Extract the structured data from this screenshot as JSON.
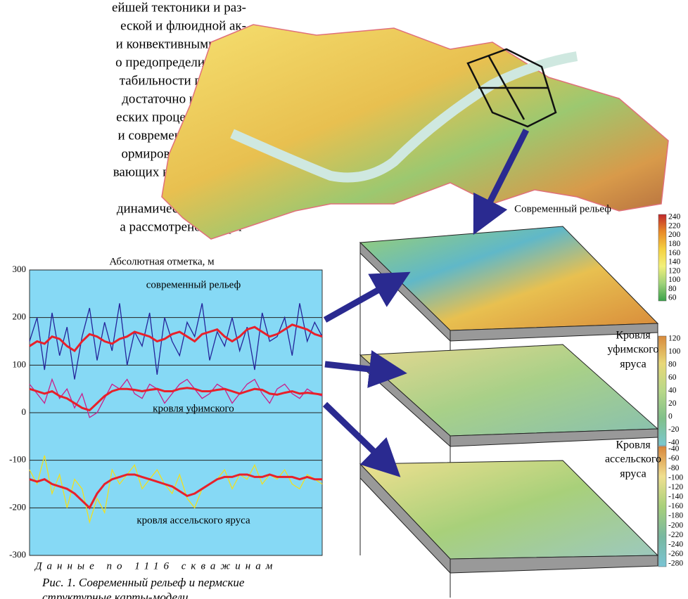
{
  "text_column": [
    "ейшей тектоники и раз-",
    "еской и флюидной ак-",
    "и конвективными (тер-",
    "о предопределило сме-",
    "табильности платфор-",
    "достаточно интенсив-",
    "еских процессах, отве-",
    "и современного релье-",
    "ормирование и разме-",
    "вающих влияние на ан-",
    "динамических процес-",
    "а рассмотрено на при-"
  ],
  "chart_data": {
    "type": "line",
    "title": "Абсолютная отметка, м",
    "x_label": "Данные по 1116 скважинам",
    "annotations": [
      "современный рельеф",
      "кровля уфимского",
      "кровля ассельского яруса"
    ],
    "background": "#86d9f5",
    "grid": true,
    "ylim": [
      -300,
      300
    ],
    "yticks": [
      -300,
      -200,
      -100,
      0,
      100,
      200,
      300
    ],
    "series": [
      {
        "color": "#24249a",
        "values": [
          150,
          200,
          90,
          210,
          120,
          180,
          70,
          160,
          220,
          110,
          190,
          130,
          230,
          100,
          170,
          140,
          210,
          80,
          200,
          150,
          120,
          190,
          160,
          230,
          110,
          170,
          140,
          200,
          130,
          180,
          90,
          210,
          150,
          160,
          200,
          120,
          230,
          150,
          190,
          160
        ]
      },
      {
        "color": "#e8202a",
        "values": [
          140,
          150,
          145,
          160,
          155,
          140,
          130,
          150,
          165,
          160,
          150,
          145,
          155,
          160,
          170,
          165,
          160,
          150,
          155,
          165,
          170,
          160,
          150,
          165,
          170,
          175,
          160,
          150,
          160,
          175,
          180,
          170,
          160,
          165,
          175,
          185,
          180,
          175,
          165,
          160
        ]
      },
      {
        "color": "#c8208c",
        "values": [
          60,
          40,
          20,
          70,
          30,
          50,
          10,
          40,
          -10,
          0,
          30,
          60,
          50,
          70,
          40,
          30,
          60,
          50,
          20,
          40,
          60,
          70,
          50,
          30,
          40,
          60,
          50,
          20,
          40,
          60,
          70,
          40,
          20,
          50,
          60,
          40,
          30,
          50,
          40,
          35
        ]
      },
      {
        "color": "#e8202a",
        "values": [
          50,
          45,
          40,
          45,
          35,
          30,
          20,
          10,
          5,
          20,
          35,
          45,
          50,
          50,
          48,
          45,
          48,
          50,
          45,
          45,
          50,
          52,
          50,
          45,
          45,
          48,
          50,
          45,
          40,
          45,
          50,
          48,
          40,
          38,
          42,
          45,
          40,
          42,
          40,
          38
        ]
      },
      {
        "color": "#f0e020",
        "values": [
          -120,
          -150,
          -90,
          -170,
          -130,
          -200,
          -140,
          -160,
          -230,
          -180,
          -210,
          -120,
          -150,
          -130,
          -110,
          -160,
          -140,
          -120,
          -150,
          -170,
          -130,
          -180,
          -200,
          -160,
          -150,
          -140,
          -120,
          -160,
          -130,
          -140,
          -110,
          -150,
          -130,
          -140,
          -120,
          -150,
          -160,
          -130,
          -140,
          -150
        ]
      },
      {
        "color": "#e8202a",
        "values": [
          -140,
          -145,
          -140,
          -150,
          -155,
          -160,
          -170,
          -185,
          -200,
          -170,
          -150,
          -140,
          -135,
          -130,
          -130,
          -135,
          -140,
          -145,
          -150,
          -155,
          -165,
          -175,
          -170,
          -160,
          -150,
          -140,
          -135,
          -135,
          -130,
          -130,
          -135,
          -135,
          -130,
          -135,
          -135,
          -135,
          -140,
          -135,
          -140,
          -140
        ]
      }
    ]
  },
  "caption": [
    "Рис. 1. Современный рельеф и пермские",
    "структурные карты-модели."
  ],
  "scales": [
    {
      "title": [
        "Современный рельеф"
      ],
      "ticks": [
        240,
        220,
        200,
        180,
        160,
        140,
        120,
        100,
        80,
        60
      ],
      "colors": [
        "#c0282c",
        "#e88a28",
        "#f5d040",
        "#f2f07a",
        "#9fd27a",
        "#3aa24a"
      ]
    },
    {
      "title": [
        "Кровля",
        "уфимского",
        "яруса"
      ],
      "ticks": [
        120,
        100,
        80,
        60,
        40,
        20,
        0,
        -20,
        -40
      ],
      "colors": [
        "#d88a3c",
        "#e8d878",
        "#b8d888",
        "#80c08a",
        "#7ac8d0"
      ]
    },
    {
      "title": [
        "Кровля",
        "ассельского",
        "яруса"
      ],
      "ticks": [
        -40,
        -60,
        -80,
        -100,
        -120,
        -140,
        -160,
        -180,
        -200,
        -220,
        -240,
        -260,
        -280
      ],
      "colors": [
        "#d8863a",
        "#f0e090",
        "#a8d07a",
        "#78b8a0",
        "#7ac4d4"
      ]
    }
  ]
}
